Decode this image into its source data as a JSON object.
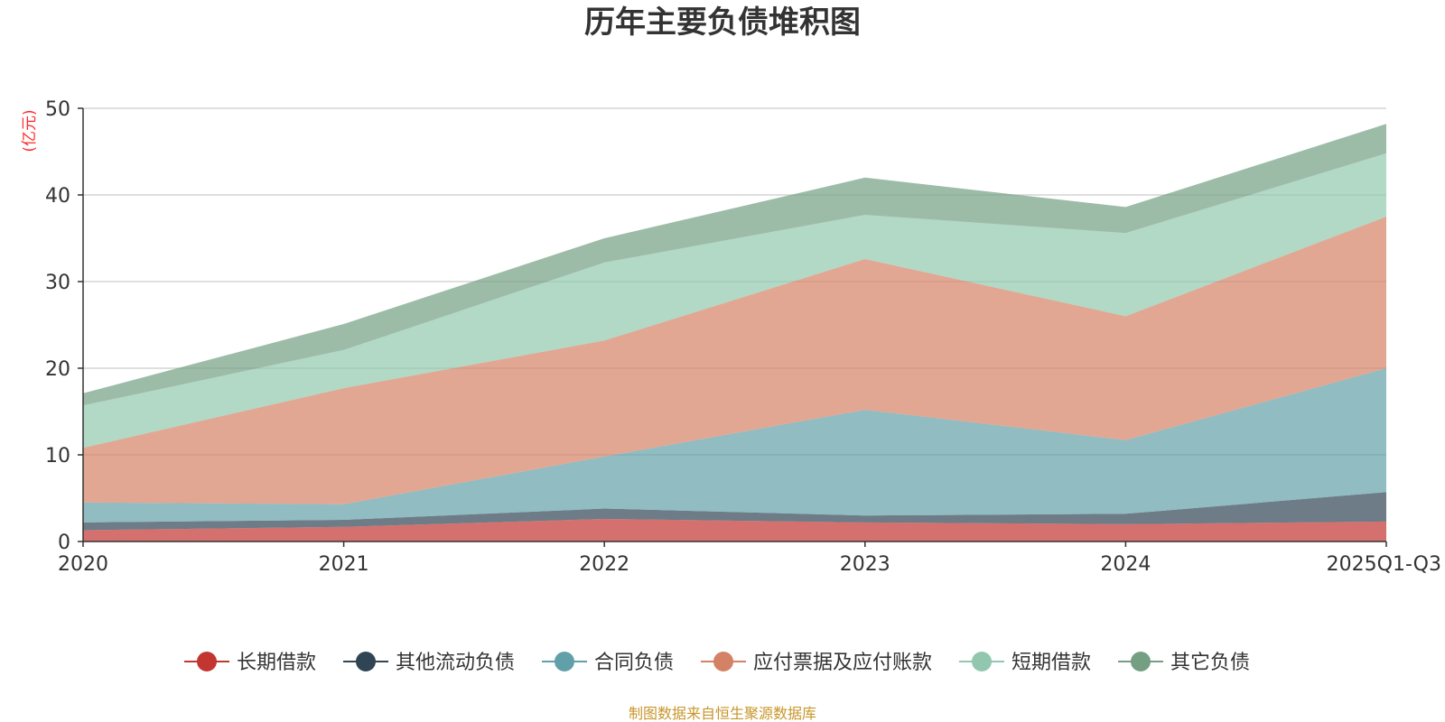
{
  "chart_data": {
    "type": "area",
    "stacked": true,
    "title": "历年主要负债堆积图",
    "unit_label": "(亿元)",
    "categories": [
      "2020",
      "2021",
      "2022",
      "2023",
      "2024",
      "2025Q1-Q3"
    ],
    "ylim": [
      0,
      50
    ],
    "yticks": [
      0,
      10,
      20,
      30,
      40,
      50
    ],
    "grid": true,
    "legend_position": "bottom",
    "series": [
      {
        "name": "长期借款",
        "color": "#c23531",
        "values": [
          1.3,
          1.7,
          2.6,
          2.2,
          2.0,
          2.3
        ]
      },
      {
        "name": "其他流动负债",
        "color": "#2f4554",
        "values": [
          0.9,
          0.8,
          1.2,
          0.8,
          1.2,
          3.4
        ]
      },
      {
        "name": "合同负债",
        "color": "#61a0a8",
        "values": [
          2.3,
          1.8,
          6.0,
          12.2,
          8.5,
          14.3
        ]
      },
      {
        "name": "应付票据及应付账款",
        "color": "#d48265",
        "values": [
          6.3,
          13.4,
          13.4,
          17.4,
          14.3,
          17.5
        ]
      },
      {
        "name": "短期借款",
        "color": "#91c7ae",
        "values": [
          4.9,
          4.4,
          9.0,
          5.1,
          9.6,
          7.3
        ]
      },
      {
        "name": "其它负债",
        "color": "#749f83",
        "values": [
          1.4,
          3.0,
          2.8,
          4.3,
          3.0,
          3.4
        ]
      }
    ]
  },
  "footer": {
    "source": "制图数据来自恒生聚源数据库"
  }
}
